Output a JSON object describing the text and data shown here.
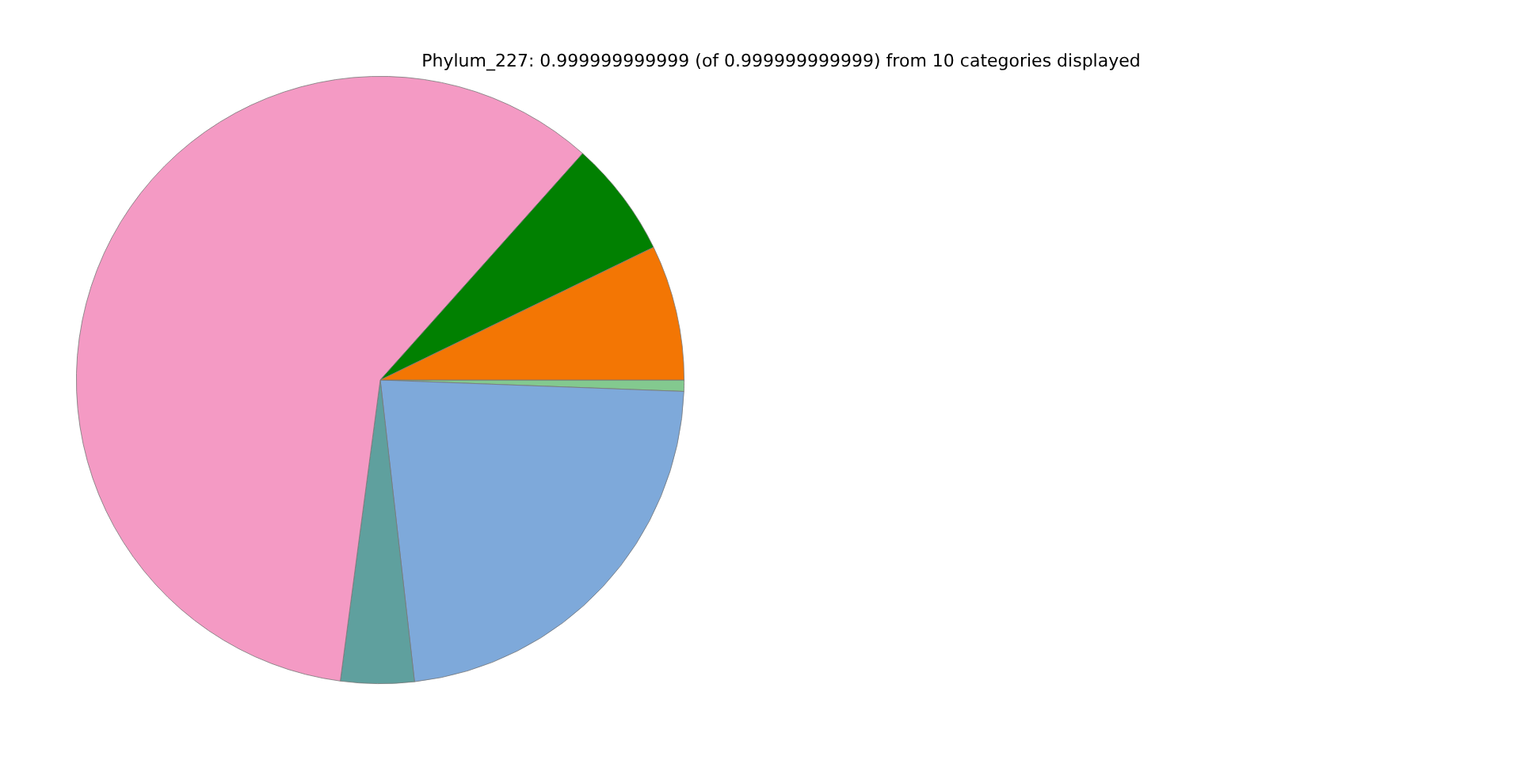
{
  "chart_data": {
    "type": "pie",
    "title": "Phylum_227: 0.999999999999 (of 0.999999999999) from 10 categories displayed",
    "categories": [
      null,
      null,
      null,
      null,
      null,
      null
    ],
    "values": [
      7.2,
      6.2,
      59.5,
      3.9,
      22.6,
      0.6
    ],
    "colors": [
      "#f37604",
      "#018001",
      "#f49ac4",
      "#5fa09e",
      "#7ea9da",
      "#83c98f"
    ],
    "legend": false
  }
}
